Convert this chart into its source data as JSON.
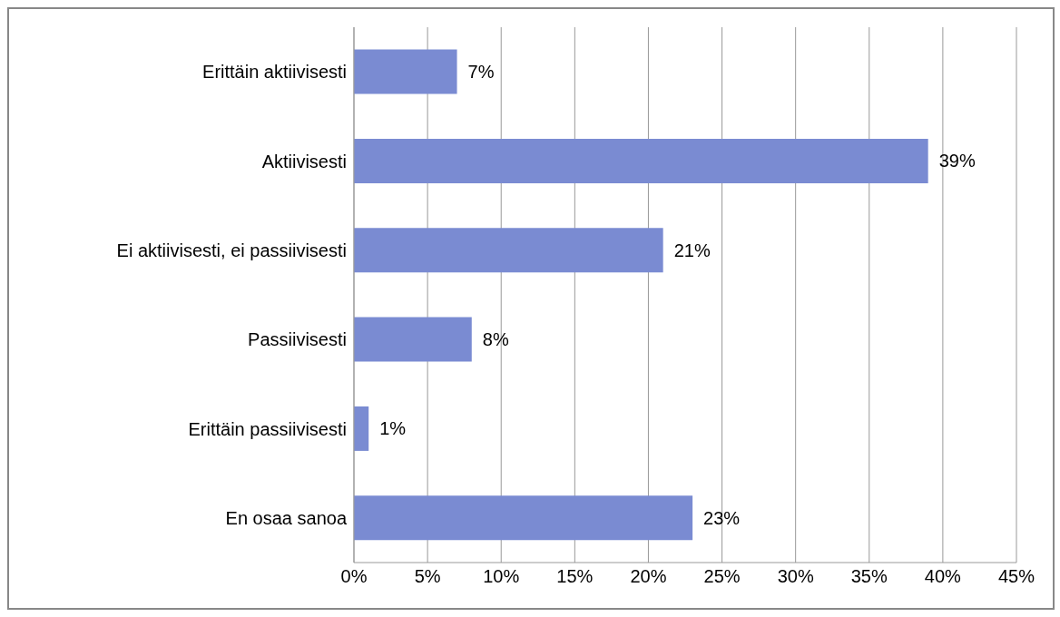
{
  "chart_data": {
    "type": "bar",
    "orientation": "horizontal",
    "categories": [
      "Erittäin aktiivisesti",
      "Aktiivisesti",
      "Ei aktiivisesti, ei passiivisesti",
      "Passiivisesti",
      "Erittäin passiivisesti",
      "En osaa sanoa"
    ],
    "values": [
      7,
      39,
      21,
      8,
      1,
      23
    ],
    "value_labels": [
      "7%",
      "39%",
      "21%",
      "8%",
      "1%",
      "23%"
    ],
    "color": "#7a8bd2",
    "xlim": [
      0,
      45
    ],
    "xticks": [
      {
        "value": 0,
        "label": "0%"
      },
      {
        "value": 5,
        "label": "5%"
      },
      {
        "value": 10,
        "label": "10%"
      },
      {
        "value": 15,
        "label": "15%"
      },
      {
        "value": 20,
        "label": "20%"
      },
      {
        "value": 25,
        "label": "25%"
      },
      {
        "value": 30,
        "label": "30%"
      },
      {
        "value": 35,
        "label": "35%"
      },
      {
        "value": 40,
        "label": "40%"
      },
      {
        "value": 45,
        "label": "45%"
      }
    ],
    "grid": "x",
    "legend": false
  }
}
